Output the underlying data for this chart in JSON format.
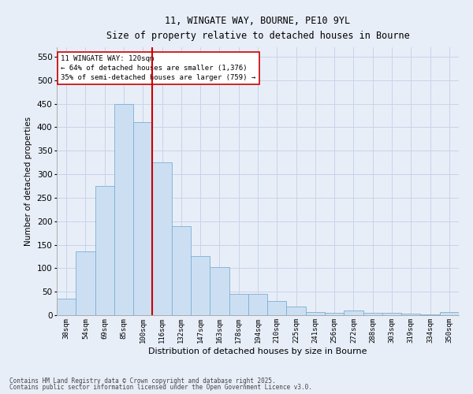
{
  "title1": "11, WINGATE WAY, BOURNE, PE10 9YL",
  "title2": "Size of property relative to detached houses in Bourne",
  "xlabel": "Distribution of detached houses by size in Bourne",
  "ylabel": "Number of detached properties",
  "categories": [
    "38sqm",
    "54sqm",
    "69sqm",
    "85sqm",
    "100sqm",
    "116sqm",
    "132sqm",
    "147sqm",
    "163sqm",
    "178sqm",
    "194sqm",
    "210sqm",
    "225sqm",
    "241sqm",
    "256sqm",
    "272sqm",
    "288sqm",
    "303sqm",
    "319sqm",
    "334sqm",
    "350sqm"
  ],
  "values": [
    35,
    136,
    275,
    450,
    410,
    325,
    190,
    125,
    103,
    46,
    46,
    30,
    18,
    7,
    5,
    10,
    5,
    5,
    4,
    2,
    6
  ],
  "bar_color": "#ccdff2",
  "bar_edge_color": "#7bafd4",
  "grid_color": "#c8d4e8",
  "bg_color": "#e8eef8",
  "vline_color": "#cc0000",
  "vline_x_idx": 5,
  "annotation_text": "11 WINGATE WAY: 120sqm\n← 64% of detached houses are smaller (1,376)\n35% of semi-detached houses are larger (759) →",
  "annotation_box_color": "#ffffff",
  "annotation_box_edge": "#cc0000",
  "footer1": "Contains HM Land Registry data © Crown copyright and database right 2025.",
  "footer2": "Contains public sector information licensed under the Open Government Licence v3.0.",
  "ylim": [
    0,
    570
  ],
  "yticks": [
    0,
    50,
    100,
    150,
    200,
    250,
    300,
    350,
    400,
    450,
    500,
    550
  ]
}
